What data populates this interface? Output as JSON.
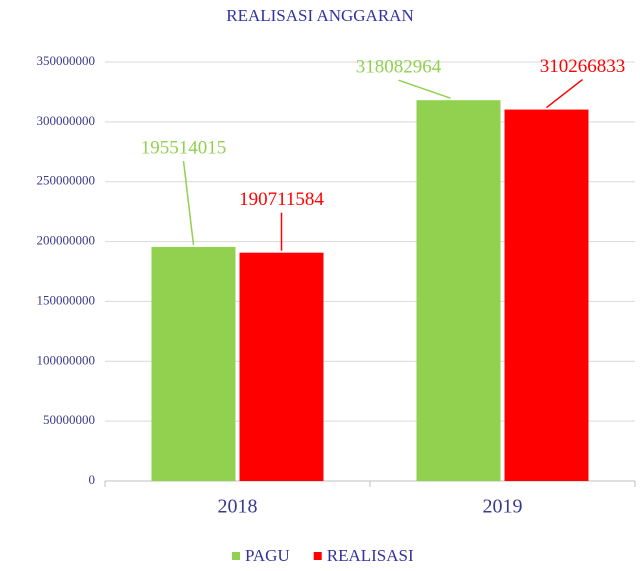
{
  "chart_data": {
    "type": "bar",
    "title": "REALISASI ANGGARAN",
    "categories": [
      "2018",
      "2019"
    ],
    "series": [
      {
        "name": "PAGU",
        "color": "#92d050",
        "values": [
          195514015,
          318082964
        ]
      },
      {
        "name": "REALISASI",
        "color": "#ff0000",
        "values": [
          190711584,
          310266833
        ]
      }
    ],
    "ylim": [
      0,
      350000000
    ],
    "yticks": [
      0,
      50000000,
      100000000,
      150000000,
      200000000,
      250000000,
      300000000,
      350000000
    ],
    "grid": true,
    "legend": "bottom"
  }
}
